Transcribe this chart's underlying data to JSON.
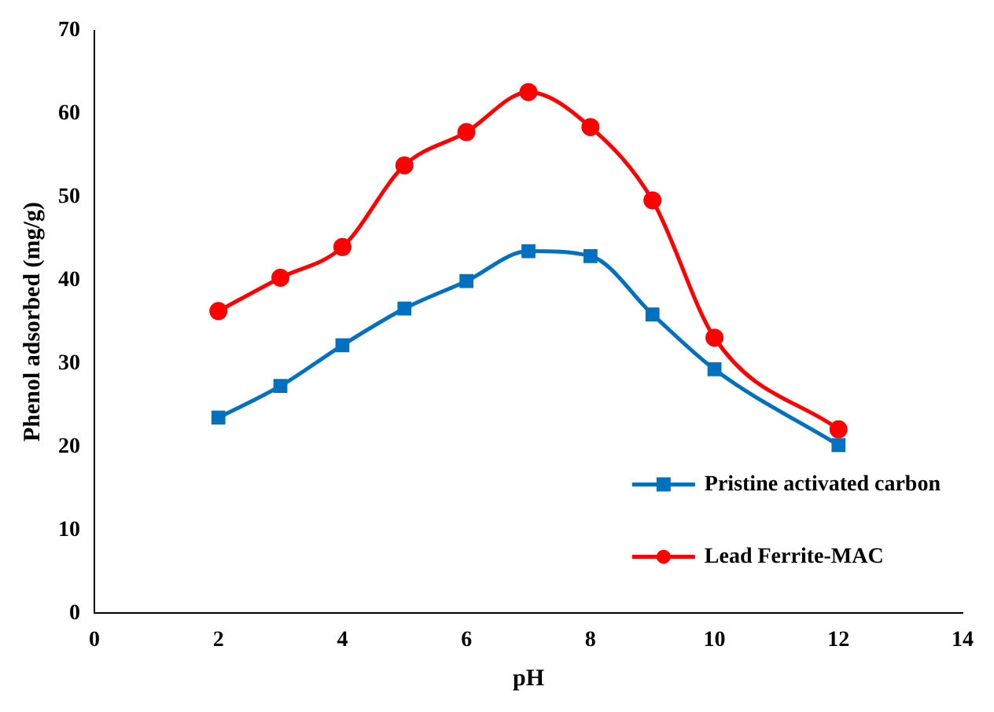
{
  "chart_data": {
    "type": "line",
    "xlabel": "pH",
    "ylabel": "Phenol adsorbed (mg/g)",
    "x": [
      2,
      3,
      4,
      5,
      6,
      7,
      8,
      9,
      10,
      12
    ],
    "xlim": [
      0,
      14
    ],
    "xticks": [
      0,
      2,
      4,
      6,
      8,
      10,
      12,
      14
    ],
    "ylim": [
      0,
      70
    ],
    "yticks": [
      0,
      10,
      20,
      30,
      40,
      50,
      60,
      70
    ],
    "grid": false,
    "legend": "bottom right",
    "series": [
      {
        "name": "Pristine activated carbon",
        "color": "#0070c0",
        "marker": "square",
        "values": [
          23.5,
          27.3,
          32.2,
          36.6,
          39.9,
          43.5,
          42.9,
          35.9,
          29.3,
          20.2
        ]
      },
      {
        "name": "Lead Ferrite-MAC",
        "color": "#ff0000",
        "marker": "circle",
        "values": [
          36.3,
          40.3,
          44.0,
          53.8,
          57.8,
          62.6,
          58.4,
          49.6,
          33.1,
          22.1
        ]
      }
    ]
  }
}
